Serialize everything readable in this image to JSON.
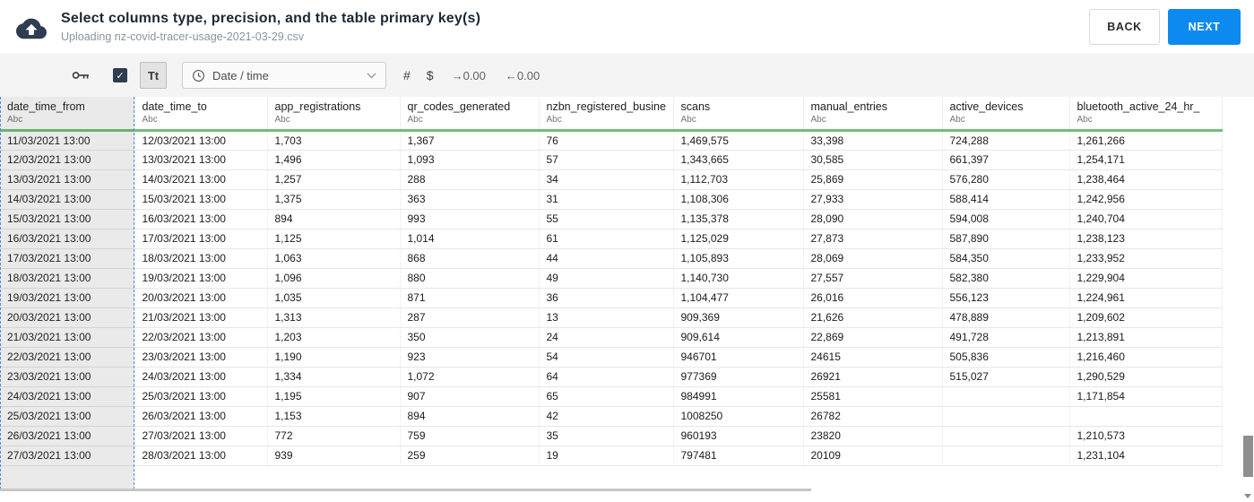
{
  "header": {
    "title": "Select columns type, precision, and the table primary key(s)",
    "subtitle": "Uploading nz-covid-tracer-usage-2021-03-29.csv",
    "back_label": "BACK",
    "next_label": "NEXT"
  },
  "toolbar": {
    "checkbox_checked": true,
    "checkmark_glyph": "✓",
    "text_type_label": "Tt",
    "type_dropdown": {
      "value": "Date / time"
    },
    "number_type_label": "#",
    "currency_type_label": "$",
    "increase_decimals_label": "→0.00",
    "decrease_decimals_label": "←0.00"
  },
  "icons": {
    "top_left": "cloud-upload-icon",
    "toolbar": [
      "key-icon",
      "checkmark-icon",
      "clock-icon",
      "chevron-down-icon"
    ]
  },
  "table": {
    "selected_column": "date_time_from",
    "columns": [
      {
        "name": "date_time_from",
        "type": "Abc"
      },
      {
        "name": "date_time_to",
        "type": "Abc"
      },
      {
        "name": "app_registrations",
        "type": "Abc"
      },
      {
        "name": "qr_codes_generated",
        "type": "Abc"
      },
      {
        "name": "nzbn_registered_busine",
        "type": "Abc"
      },
      {
        "name": "scans",
        "type": "Abc"
      },
      {
        "name": "manual_entries",
        "type": "Abc"
      },
      {
        "name": "active_devices",
        "type": "Abc"
      },
      {
        "name": "bluetooth_active_24_hr_",
        "type": "Abc"
      }
    ],
    "rows": [
      [
        "11/03/2021 13:00",
        "12/03/2021 13:00",
        "1,703",
        "1,367",
        "76",
        "1,469,575",
        "33,398",
        "724,288",
        "1,261,266"
      ],
      [
        "12/03/2021 13:00",
        "13/03/2021 13:00",
        "1,496",
        "1,093",
        "57",
        "1,343,665",
        "30,585",
        "661,397",
        "1,254,171"
      ],
      [
        "13/03/2021 13:00",
        "14/03/2021 13:00",
        "1,257",
        "288",
        "34",
        "1,112,703",
        "25,869",
        "576,280",
        "1,238,464"
      ],
      [
        "14/03/2021 13:00",
        "15/03/2021 13:00",
        "1,375",
        "363",
        "31",
        "1,108,306",
        "27,933",
        "588,414",
        "1,242,956"
      ],
      [
        "15/03/2021 13:00",
        "16/03/2021 13:00",
        "894",
        "993",
        "55",
        "1,135,378",
        "28,090",
        "594,008",
        "1,240,704"
      ],
      [
        "16/03/2021 13:00",
        "17/03/2021 13:00",
        "1,125",
        "1,014",
        "61",
        "1,125,029",
        "27,873",
        "587,890",
        "1,238,123"
      ],
      [
        "17/03/2021 13:00",
        "18/03/2021 13:00",
        "1,063",
        "868",
        "44",
        "1,105,893",
        "28,069",
        "584,350",
        "1,233,952"
      ],
      [
        "18/03/2021 13:00",
        "19/03/2021 13:00",
        "1,096",
        "880",
        "49",
        "1,140,730",
        "27,557",
        "582,380",
        "1,229,904"
      ],
      [
        "19/03/2021 13:00",
        "20/03/2021 13:00",
        "1,035",
        "871",
        "36",
        "1,104,477",
        "26,016",
        "556,123",
        "1,224,961"
      ],
      [
        "20/03/2021 13:00",
        "21/03/2021 13:00",
        "1,313",
        "287",
        "13",
        "909,369",
        "21,626",
        "478,889",
        "1,209,602"
      ],
      [
        "21/03/2021 13:00",
        "22/03/2021 13:00",
        "1,203",
        "350",
        "24",
        "909,614",
        "22,869",
        "491,728",
        "1,213,891"
      ],
      [
        "22/03/2021 13:00",
        "23/03/2021 13:00",
        "1,190",
        "923",
        "54",
        "946701",
        "24615",
        "505,836",
        "1,216,460"
      ],
      [
        "23/03/2021 13:00",
        "24/03/2021 13:00",
        "1,334",
        "1,072",
        "64",
        "977369",
        "26921",
        "515,027",
        "1,290,529"
      ],
      [
        "24/03/2021 13:00",
        "25/03/2021 13:00",
        "1,195",
        "907",
        "65",
        "984991",
        "25581",
        "",
        "1,171,854"
      ],
      [
        "25/03/2021 13:00",
        "26/03/2021 13:00",
        "1,153",
        "894",
        "42",
        "1008250",
        "26782",
        "",
        ""
      ],
      [
        "26/03/2021 13:00",
        "27/03/2021 13:00",
        "772",
        "759",
        "35",
        "960193",
        "23820",
        "",
        "1,210,573"
      ],
      [
        "27/03/2021 13:00",
        "28/03/2021 13:00",
        "939",
        "259",
        "19",
        "797481",
        "20109",
        "",
        "1,231,104"
      ]
    ]
  },
  "colors": {
    "accent_blue": "#0d8af0",
    "header_underline_green": "#72bf75",
    "selection_dash_blue": "#4a90e2",
    "dark_navy": "#2e3d50"
  }
}
